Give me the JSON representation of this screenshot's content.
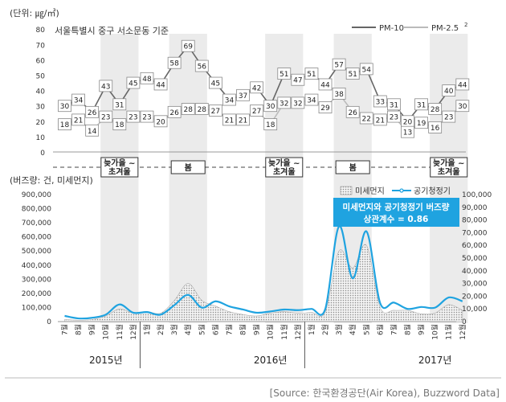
{
  "top_chart": {
    "unit_label": "(단위: ㎍/㎥)",
    "location_note": "서울특별시 중구 서소문동 기준",
    "y_ticks": [
      0,
      10,
      20,
      30,
      40,
      50,
      60,
      70,
      80
    ],
    "legend": [
      {
        "label": "PM-10",
        "color": "#666666"
      },
      {
        "label": "PM-2.5",
        "sup": "2",
        "color": "#bbbbbb"
      }
    ],
    "season_bands": [
      {
        "label": "늦가을 ~\n초겨울",
        "start": 3,
        "end": 5
      },
      {
        "label": "봄",
        "start": 8,
        "end": 10
      },
      {
        "label": "늦가을 ~\n초겨울",
        "start": 15,
        "end": 17
      },
      {
        "label": "봄",
        "start": 20,
        "end": 22
      },
      {
        "label": "늦가을 ~\n초겨울",
        "start": 27,
        "end": 29
      }
    ]
  },
  "bottom_chart": {
    "left_axis_label": "(버즈량: 건, 미세먼지)",
    "left_ticks": [
      "0",
      "100,000",
      "200,000",
      "300,000",
      "400,000",
      "500,000",
      "600,000",
      "700,000",
      "800,000",
      "900,000"
    ],
    "right_ticks": [
      "0",
      "10,000",
      "20,000",
      "30,000",
      "40,000",
      "50,000",
      "60,000",
      "70,000",
      "80,000",
      "90,000",
      "100,000"
    ],
    "legend_dust": "미세먼지",
    "legend_air": "공기청정기",
    "callout_line1": "미세먼지와 공기청정기 버즈량",
    "callout_line2": "상관계수 = 0.86",
    "month_labels": [
      "7월",
      "8월",
      "9월",
      "10월",
      "11월",
      "12월",
      "1월",
      "2월",
      "3월",
      "4월",
      "5월",
      "6월",
      "7월",
      "8월",
      "9월",
      "10월",
      "11월",
      "12월",
      "1월",
      "2월",
      "3월",
      "4월",
      "5월",
      "6월",
      "7월",
      "8월",
      "9월",
      "10월",
      "11월",
      "12월"
    ],
    "year_labels": [
      {
        "label": "2015년",
        "month_index": 3
      },
      {
        "label": "2016년",
        "month_index": 15
      },
      {
        "label": "2017년",
        "month_index": 27
      }
    ]
  },
  "chart_data": [
    {
      "type": "line",
      "title": "",
      "subtitle": "서울특별시 중구 서소문동 기준",
      "ylabel": "(단위: ㎍/㎥)",
      "ylim": [
        0,
        80
      ],
      "x": [
        "2015-07",
        "2015-08",
        "2015-09",
        "2015-10",
        "2015-11",
        "2015-12",
        "2016-01",
        "2016-02",
        "2016-03",
        "2016-04",
        "2016-05",
        "2016-06",
        "2016-07",
        "2016-08",
        "2016-09",
        "2016-10",
        "2016-11",
        "2016-12",
        "2017-01",
        "2017-02",
        "2017-03",
        "2017-04",
        "2017-05",
        "2017-06",
        "2017-07",
        "2017-08",
        "2017-09",
        "2017-10",
        "2017-11",
        "2017-12"
      ],
      "series": [
        {
          "name": "PM-10",
          "color": "#666666",
          "values": [
            30,
            34,
            26,
            43,
            31,
            45,
            48,
            44,
            58,
            69,
            56,
            45,
            34,
            37,
            42,
            30,
            51,
            47,
            51,
            44,
            57,
            51,
            54,
            33,
            31,
            20,
            31,
            28,
            40,
            44
          ]
        },
        {
          "name": "PM-2.5",
          "color": "#bbbbbb",
          "values": [
            18,
            21,
            14,
            23,
            18,
            23,
            23,
            20,
            26,
            28,
            28,
            27,
            21,
            21,
            27,
            18,
            32,
            32,
            34,
            29,
            38,
            26,
            22,
            21,
            23,
            13,
            19,
            16,
            23,
            30
          ]
        }
      ]
    },
    {
      "type": "area",
      "xlabel": "",
      "ylabel": "(버즈량: 건, 미세먼지)",
      "x": [
        "2015-07",
        "2015-08",
        "2015-09",
        "2015-10",
        "2015-11",
        "2015-12",
        "2016-01",
        "2016-02",
        "2016-03",
        "2016-04",
        "2016-05",
        "2016-06",
        "2016-07",
        "2016-08",
        "2016-09",
        "2016-10",
        "2016-11",
        "2016-12",
        "2017-01",
        "2017-02",
        "2017-03",
        "2017-04",
        "2017-05",
        "2017-06",
        "2017-07",
        "2017-08",
        "2017-09",
        "2017-10",
        "2017-11",
        "2017-12"
      ],
      "left_ylim": [
        0,
        900000
      ],
      "right_ylim": [
        0,
        100000
      ],
      "series": [
        {
          "name": "미세먼지",
          "axis": "left",
          "values": [
            15000,
            10000,
            15000,
            40000,
            90000,
            60000,
            70000,
            60000,
            150000,
            270000,
            150000,
            110000,
            70000,
            50000,
            40000,
            60000,
            70000,
            60000,
            65000,
            70000,
            500000,
            380000,
            540000,
            100000,
            80000,
            80000,
            55000,
            60000,
            120000,
            80000
          ]
        },
        {
          "name": "공기청정기",
          "axis": "right",
          "values": [
            4500,
            2500,
            3000,
            5500,
            13500,
            7000,
            7500,
            5500,
            13000,
            21000,
            11000,
            16000,
            12000,
            9500,
            7000,
            8000,
            9500,
            9000,
            10000,
            10000,
            75000,
            34000,
            71000,
            14500,
            15000,
            10000,
            11500,
            11000,
            19000,
            16000
          ]
        }
      ]
    }
  ],
  "source": "[Source: 한국환경공단(Air Korea), Buzzword Data]"
}
